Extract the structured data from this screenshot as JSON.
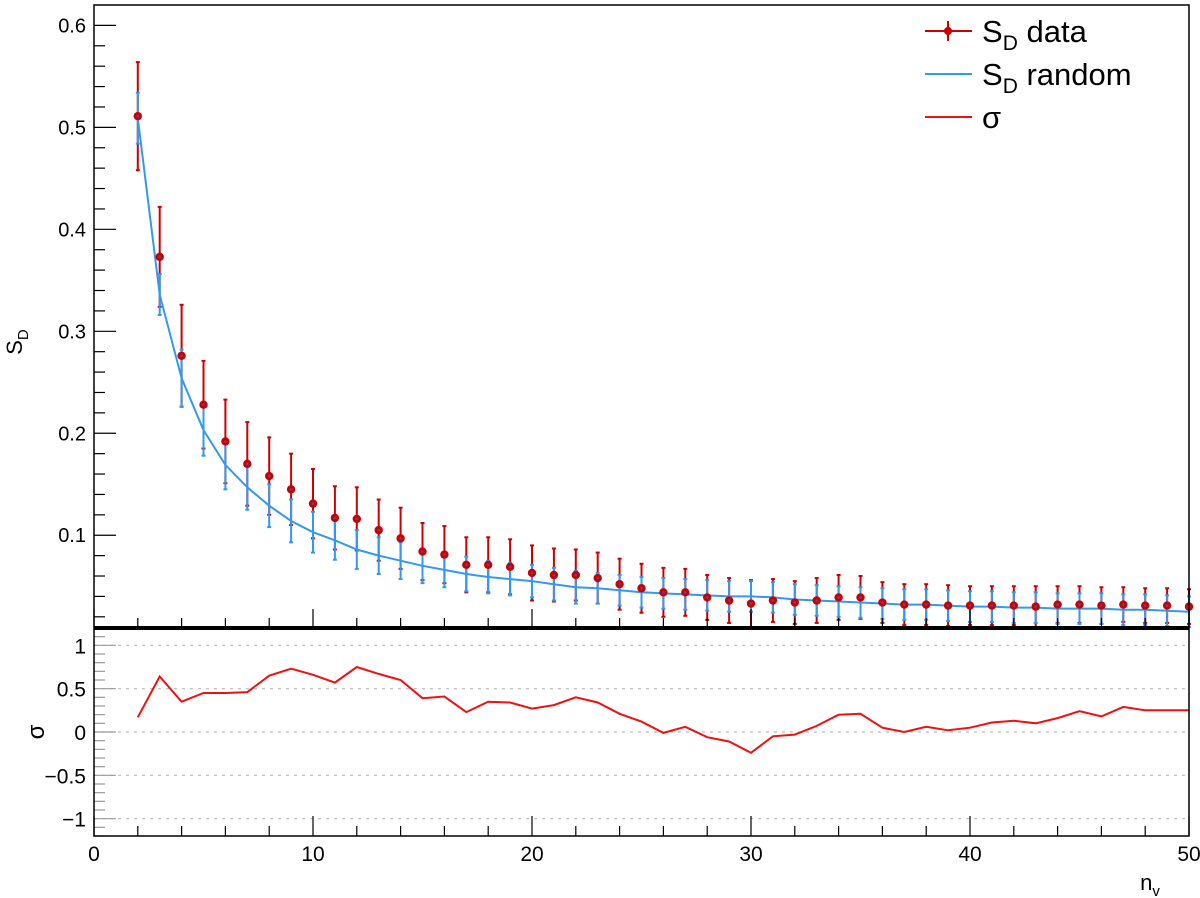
{
  "chart_data": [
    {
      "panel": "top",
      "type": "scatter",
      "ylabel_main": "S",
      "ylabel_sub": "D",
      "ylim": [
        0.01,
        0.62
      ],
      "xlim": [
        0,
        50
      ],
      "yticks": [
        0.1,
        0.2,
        0.3,
        0.4,
        0.5,
        0.6
      ],
      "ytick_labels": [
        "0.1",
        "0.2",
        "0.3",
        "0.4",
        "0.5",
        "0.6"
      ],
      "legend_position": "top-right",
      "legend": [
        {
          "main": "S",
          "sub": "D",
          "rest": " data",
          "style": "marker"
        },
        {
          "main": "S",
          "sub": "D",
          "rest": " random",
          "style": "line"
        },
        {
          "main": "σ",
          "sub": "",
          "rest": "",
          "style": "line"
        }
      ],
      "colors": {
        "data": "#cc0000",
        "random": "#3399ee",
        "sigma": "#ee1111"
      },
      "series": [
        {
          "name": "S_D data",
          "x": [
            2,
            3,
            4,
            5,
            6,
            7,
            8,
            9,
            10,
            11,
            12,
            13,
            14,
            15,
            16,
            17,
            18,
            19,
            20,
            21,
            22,
            23,
            24,
            25,
            26,
            27,
            28,
            29,
            30,
            31,
            32,
            33,
            34,
            35,
            36,
            37,
            38,
            39,
            40,
            41,
            42,
            43,
            44,
            45,
            46,
            47,
            48,
            49,
            50
          ],
          "y": [
            0.511,
            0.373,
            0.276,
            0.228,
            0.192,
            0.17,
            0.158,
            0.145,
            0.131,
            0.117,
            0.116,
            0.105,
            0.097,
            0.084,
            0.081,
            0.071,
            0.071,
            0.069,
            0.063,
            0.061,
            0.061,
            0.058,
            0.052,
            0.048,
            0.044,
            0.044,
            0.039,
            0.036,
            0.033,
            0.036,
            0.034,
            0.036,
            0.039,
            0.039,
            0.034,
            0.032,
            0.032,
            0.031,
            0.031,
            0.031,
            0.031,
            0.03,
            0.032,
            0.032,
            0.031,
            0.032,
            0.031,
            0.031,
            0.03
          ],
          "err": [
            0.053,
            0.049,
            0.05,
            0.043,
            0.041,
            0.041,
            0.038,
            0.035,
            0.034,
            0.031,
            0.031,
            0.03,
            0.03,
            0.028,
            0.028,
            0.027,
            0.027,
            0.027,
            0.027,
            0.026,
            0.025,
            0.025,
            0.025,
            0.024,
            0.024,
            0.023,
            0.022,
            0.022,
            0.023,
            0.021,
            0.021,
            0.022,
            0.022,
            0.021,
            0.02,
            0.02,
            0.02,
            0.02,
            0.019,
            0.019,
            0.019,
            0.02,
            0.018,
            0.018,
            0.018,
            0.017,
            0.017,
            0.017,
            0.017
          ]
        },
        {
          "name": "S_D random",
          "x": [
            2,
            3,
            4,
            5,
            6,
            7,
            8,
            9,
            10,
            11,
            12,
            13,
            14,
            15,
            16,
            17,
            18,
            19,
            20,
            21,
            22,
            23,
            24,
            25,
            26,
            27,
            28,
            29,
            30,
            31,
            32,
            33,
            34,
            35,
            36,
            37,
            38,
            39,
            40,
            41,
            42,
            43,
            44,
            45,
            46,
            47,
            48,
            49,
            50
          ],
          "y": [
            0.509,
            0.336,
            0.254,
            0.203,
            0.169,
            0.147,
            0.129,
            0.114,
            0.103,
            0.095,
            0.086,
            0.08,
            0.075,
            0.07,
            0.066,
            0.062,
            0.059,
            0.057,
            0.055,
            0.052,
            0.049,
            0.048,
            0.046,
            0.044,
            0.043,
            0.042,
            0.041,
            0.04,
            0.04,
            0.039,
            0.037,
            0.036,
            0.035,
            0.034,
            0.033,
            0.032,
            0.032,
            0.031,
            0.03,
            0.03,
            0.029,
            0.029,
            0.028,
            0.028,
            0.028,
            0.027,
            0.027,
            0.026,
            0.025
          ],
          "err": [
            0.025,
            0.02,
            0.028,
            0.025,
            0.024,
            0.022,
            0.021,
            0.021,
            0.02,
            0.019,
            0.019,
            0.018,
            0.018,
            0.017,
            0.017,
            0.017,
            0.016,
            0.016,
            0.016,
            0.016,
            0.016,
            0.015,
            0.015,
            0.015,
            0.015,
            0.015,
            0.015,
            0.015,
            0.015,
            0.015,
            0.015,
            0.015,
            0.015,
            0.015,
            0.015,
            0.015,
            0.015,
            0.015,
            0.015,
            0.015,
            0.015,
            0.015,
            0.015,
            0.015,
            0.015,
            0.015,
            0.015,
            0.015,
            0.015
          ]
        }
      ]
    },
    {
      "panel": "bottom",
      "type": "line",
      "ylabel": "σ",
      "xlabel_main": "n",
      "xlabel_sub": "v",
      "xlim": [
        0,
        50
      ],
      "ylim": [
        -1.2,
        1.2
      ],
      "xticks": [
        0,
        10,
        20,
        30,
        40,
        50
      ],
      "xtick_labels": [
        "0",
        "10",
        "20",
        "30",
        "40",
        "50"
      ],
      "yticks": [
        -1,
        -0.5,
        0,
        0.5,
        1
      ],
      "ytick_labels": [
        "−1",
        "−0.5",
        "0",
        "0.5",
        "1"
      ],
      "grid": "horizontal dotted",
      "series": [
        {
          "name": "σ",
          "x": [
            2,
            3,
            4,
            5,
            6,
            7,
            8,
            9,
            10,
            11,
            12,
            13,
            14,
            15,
            16,
            17,
            18,
            19,
            20,
            21,
            22,
            23,
            24,
            25,
            26,
            27,
            28,
            29,
            30,
            31,
            32,
            33,
            34,
            35,
            36,
            37,
            38,
            39,
            40,
            41,
            42,
            43,
            44,
            45,
            46,
            47,
            48,
            49,
            50
          ],
          "y": [
            0.17,
            0.64,
            0.35,
            0.45,
            0.45,
            0.46,
            0.65,
            0.73,
            0.66,
            0.57,
            0.75,
            0.67,
            0.6,
            0.39,
            0.41,
            0.23,
            0.35,
            0.34,
            0.27,
            0.31,
            0.4,
            0.34,
            0.21,
            0.12,
            -0.01,
            0.06,
            -0.06,
            -0.11,
            -0.24,
            -0.05,
            -0.03,
            0.07,
            0.2,
            0.21,
            0.05,
            0.0,
            0.06,
            0.02,
            0.05,
            0.11,
            0.13,
            0.1,
            0.16,
            0.24,
            0.18,
            0.29,
            0.25,
            0.25,
            0.25
          ]
        }
      ]
    }
  ]
}
